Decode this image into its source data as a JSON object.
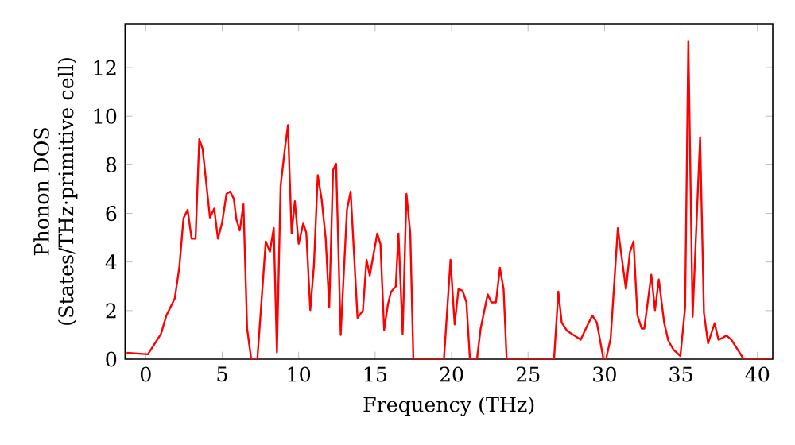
{
  "chart_data": {
    "type": "line",
    "xlabel": "Frequency (THz)",
    "ylabel": "Phonon DOS (States/THz·primitive cell)",
    "xlim": [
      -1.35,
      41.0
    ],
    "ylim": [
      0,
      13.8
    ],
    "xticks": [
      0,
      5,
      10,
      15,
      20,
      25,
      30,
      35,
      40
    ],
    "yticks": [
      0,
      2,
      4,
      6,
      8,
      10,
      12
    ],
    "series": [
      {
        "color": "#ff0000",
        "x": [
          -1.25,
          0.14,
          1.0,
          1.35,
          1.9,
          2.2,
          2.47,
          2.74,
          3.0,
          3.26,
          3.5,
          3.72,
          4.2,
          4.48,
          4.72,
          4.99,
          5.28,
          5.52,
          5.76,
          5.93,
          6.15,
          6.39,
          6.63,
          6.9,
          7.3,
          7.85,
          8.12,
          8.37,
          8.58,
          8.82,
          9.1,
          9.3,
          9.54,
          9.75,
          10.0,
          10.3,
          10.5,
          10.76,
          11.0,
          11.25,
          11.5,
          11.77,
          12.0,
          12.25,
          12.45,
          12.75,
          13.16,
          13.4,
          13.85,
          14.2,
          14.44,
          14.65,
          15.14,
          15.35,
          15.59,
          15.83,
          16.04,
          16.35,
          16.53,
          16.8,
          17.05,
          17.3,
          17.5,
          19.5,
          19.93,
          20.2,
          20.45,
          20.72,
          20.97,
          21.2,
          21.66,
          21.9,
          22.36,
          22.6,
          22.9,
          23.16,
          23.4,
          23.6,
          26.7,
          26.98,
          27.2,
          27.55,
          28.07,
          28.44,
          28.78,
          29.2,
          29.5,
          29.93,
          30.1,
          30.4,
          30.87,
          31.4,
          31.66,
          31.9,
          32.15,
          32.43,
          32.6,
          33.06,
          33.3,
          33.55,
          33.9,
          34.17,
          34.5,
          34.96,
          35.27,
          35.48,
          35.76,
          36.25,
          36.5,
          36.77,
          37.2,
          37.45,
          37.7,
          37.97,
          38.3,
          39.1,
          40.94
        ],
        "values": [
          0.26,
          0.2,
          1.04,
          1.8,
          2.5,
          3.8,
          5.8,
          6.15,
          4.96,
          4.96,
          9.05,
          8.66,
          5.83,
          6.2,
          4.96,
          5.6,
          6.8,
          6.9,
          6.6,
          5.74,
          5.3,
          6.37,
          1.26,
          0,
          0,
          4.85,
          4.42,
          5.4,
          0.28,
          7.13,
          8.66,
          9.63,
          5.17,
          6.5,
          4.75,
          5.58,
          5.2,
          2.02,
          3.86,
          7.57,
          6.6,
          4.96,
          2.13,
          7.78,
          8.04,
          1.0,
          6.15,
          6.9,
          1.7,
          2.0,
          4.09,
          3.44,
          5.17,
          4.74,
          1.2,
          2.23,
          2.77,
          2.99,
          5.17,
          1.04,
          6.8,
          5.17,
          0,
          0,
          4.09,
          1.43,
          2.88,
          2.82,
          2.34,
          0,
          0,
          1.26,
          2.67,
          2.34,
          2.34,
          3.76,
          2.88,
          0,
          0,
          2.78,
          1.5,
          1.17,
          0.96,
          0.8,
          1.26,
          1.8,
          1.5,
          0,
          0,
          0.85,
          5.39,
          2.89,
          4.4,
          4.85,
          1.8,
          1.26,
          1.26,
          3.48,
          2.02,
          3.28,
          1.5,
          0.76,
          0.4,
          0.13,
          2.13,
          13.1,
          1.74,
          9.13,
          1.91,
          0.65,
          1.48,
          0.8,
          0.87,
          0.98,
          0.8,
          0,
          0
        ]
      }
    ]
  }
}
